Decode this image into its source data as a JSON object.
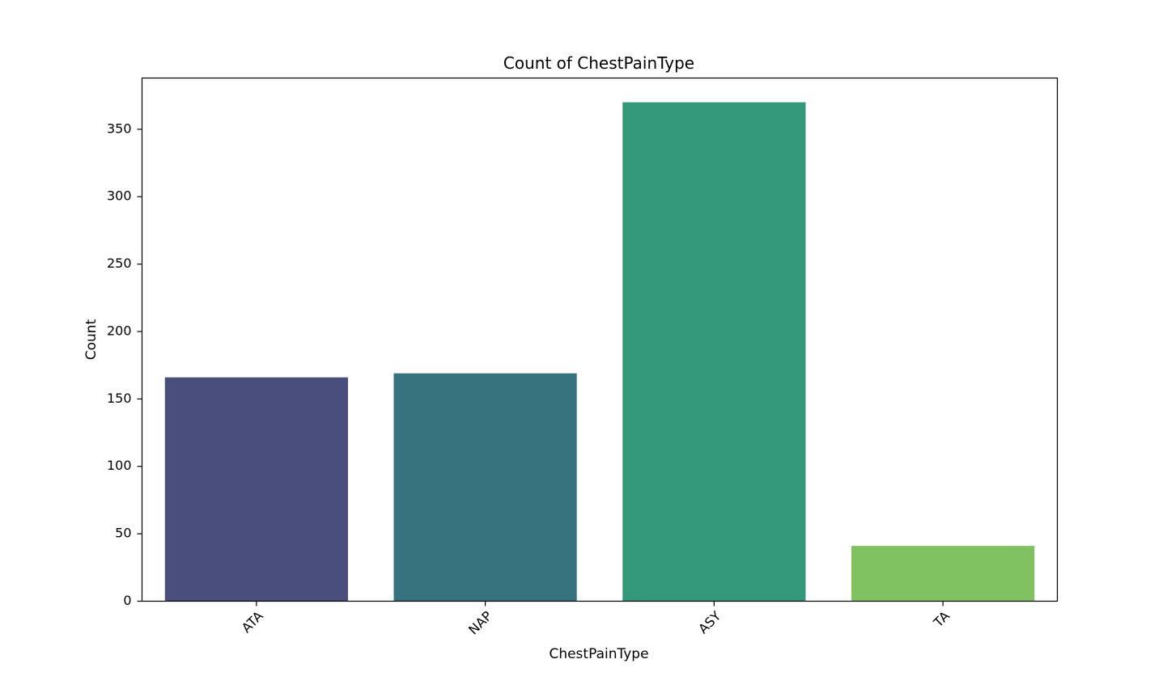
{
  "chart_data": {
    "type": "bar",
    "title": "Count of ChestPainType",
    "xlabel": "ChestPainType",
    "ylabel": "Count",
    "categories": [
      "ATA",
      "NAP",
      "ASY",
      "TA"
    ],
    "values": [
      166,
      169,
      370,
      41
    ],
    "colors": [
      "#4a4e7c",
      "#37727f",
      "#34987a",
      "#80c262"
    ],
    "ylim": [
      0,
      388
    ],
    "yticks": [
      0,
      50,
      100,
      150,
      200,
      250,
      300,
      350
    ],
    "ytick_labels": [
      "0",
      "50",
      "100",
      "150",
      "200",
      "250",
      "300",
      "350"
    ],
    "xtick_rotation": -45,
    "grid": false,
    "legend": "none"
  }
}
